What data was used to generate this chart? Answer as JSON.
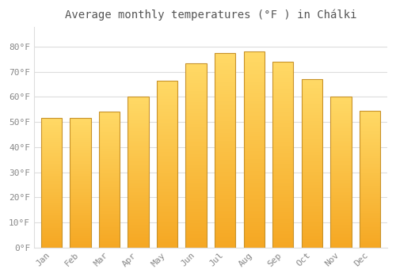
{
  "title": "Average monthly temperatures (°F ) in Chálki",
  "months": [
    "Jan",
    "Feb",
    "Mar",
    "Apr",
    "May",
    "Jun",
    "Jul",
    "Aug",
    "Sep",
    "Oct",
    "Nov",
    "Dec"
  ],
  "values": [
    51.5,
    51.5,
    54,
    60,
    66.5,
    73.5,
    77.5,
    78,
    74,
    67,
    60,
    54.5
  ],
  "bar_color_bottom": "#F5A623",
  "bar_color_top": "#FFD966",
  "bar_edge_color": "#C8922A",
  "background_color": "#FFFFFF",
  "grid_color": "#DDDDDD",
  "text_color": "#888888",
  "ylim": [
    0,
    88
  ],
  "yticks": [
    0,
    10,
    20,
    30,
    40,
    50,
    60,
    70,
    80
  ],
  "ytick_labels": [
    "0°F",
    "10°F",
    "20°F",
    "30°F",
    "40°F",
    "50°F",
    "60°F",
    "70°F",
    "80°F"
  ],
  "title_fontsize": 10,
  "tick_fontsize": 8,
  "font_family": "monospace"
}
